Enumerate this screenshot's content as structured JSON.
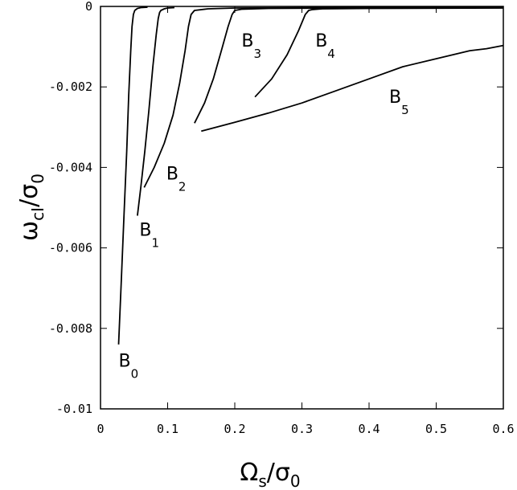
{
  "chart_data": {
    "type": "line",
    "xlabel": {
      "main": "Ω",
      "sub": "s",
      "slash": "/σ",
      "sub2": "0"
    },
    "ylabel": {
      "main": "ω",
      "sub": "cI",
      "slash": "/σ",
      "sub2": "0"
    },
    "xlim": [
      0,
      0.6
    ],
    "ylim": [
      -0.01,
      0
    ],
    "xticks": [
      0,
      0.1,
      0.2,
      0.3,
      0.4,
      0.5,
      0.6
    ],
    "xtick_labels": [
      "0",
      "0.1",
      "0.2",
      "0.3",
      "0.4",
      "0.5",
      "0.6"
    ],
    "yticks": [
      0,
      -0.002,
      -0.004,
      -0.006,
      -0.008,
      -0.01
    ],
    "ytick_labels": [
      "0",
      "-0.002",
      "-0.004",
      "-0.006",
      "-0.008",
      "-0.01"
    ],
    "grid": false,
    "series": [
      {
        "name": "B0",
        "label": "B",
        "sub": "0",
        "x": [
          0.027,
          0.031,
          0.035,
          0.039,
          0.042,
          0.045,
          0.047,
          0.049,
          0.051,
          0.055,
          0.06,
          0.07
        ],
        "y": [
          -0.0084,
          -0.0068,
          -0.0052,
          -0.0036,
          -0.0022,
          -0.0011,
          -0.0005,
          -0.0002,
          -0.0001,
          -5e-05,
          -3e-05,
          -2e-05
        ]
      },
      {
        "name": "B1",
        "label": "B",
        "sub": "1",
        "x": [
          0.055,
          0.06,
          0.066,
          0.072,
          0.078,
          0.083,
          0.086,
          0.088,
          0.09,
          0.095,
          0.1,
          0.11
        ],
        "y": [
          -0.0052,
          -0.0045,
          -0.0036,
          -0.0026,
          -0.0015,
          -0.0007,
          -0.0003,
          -0.00015,
          -0.0001,
          -6e-05,
          -4e-05,
          -3e-05
        ]
      },
      {
        "name": "B2",
        "label": "B",
        "sub": "2",
        "x": [
          0.065,
          0.08,
          0.095,
          0.108,
          0.118,
          0.126,
          0.131,
          0.135,
          0.14,
          0.16,
          0.2,
          0.3,
          0.6
        ],
        "y": [
          -0.0045,
          -0.004,
          -0.0034,
          -0.0027,
          -0.0019,
          -0.0011,
          -0.0005,
          -0.0002,
          -0.0001,
          -6e-05,
          -4e-05,
          -3e-05,
          -2e-05
        ]
      },
      {
        "name": "B3",
        "label": "B",
        "sub": "3",
        "x": [
          0.14,
          0.155,
          0.168,
          0.18,
          0.19,
          0.196,
          0.2,
          0.21,
          0.25,
          0.35,
          0.6
        ],
        "y": [
          -0.0029,
          -0.0024,
          -0.0018,
          -0.0011,
          -0.0005,
          -0.0002,
          -0.0001,
          -7e-05,
          -5e-05,
          -4e-05,
          -3e-05
        ]
      },
      {
        "name": "B4",
        "label": "B",
        "sub": "4",
        "x": [
          0.23,
          0.255,
          0.278,
          0.295,
          0.305,
          0.31,
          0.315,
          0.33,
          0.4,
          0.6
        ],
        "y": [
          -0.00225,
          -0.0018,
          -0.0012,
          -0.0006,
          -0.0002,
          -0.0001,
          -8e-05,
          -6e-05,
          -5e-05,
          -4e-05
        ]
      },
      {
        "name": "B5",
        "label": "B",
        "sub": "5",
        "x": [
          0.15,
          0.2,
          0.25,
          0.3,
          0.35,
          0.4,
          0.45,
          0.5,
          0.55,
          0.575,
          0.6
        ],
        "y": [
          -0.0031,
          -0.00288,
          -0.00265,
          -0.0024,
          -0.0021,
          -0.0018,
          -0.0015,
          -0.0013,
          -0.0011,
          -0.00105,
          -0.00097
        ]
      }
    ],
    "annotations": [
      {
        "series": "B0",
        "text": "B",
        "sub": "0",
        "x": 0.027,
        "y": -0.00895
      },
      {
        "series": "B1",
        "text": "B",
        "sub": "1",
        "x": 0.058,
        "y": -0.0057
      },
      {
        "series": "B2",
        "text": "B",
        "sub": "2",
        "x": 0.098,
        "y": -0.0043
      },
      {
        "series": "B3",
        "text": "B",
        "sub": "3",
        "x": 0.21,
        "y": -0.001
      },
      {
        "series": "B4",
        "text": "B",
        "sub": "4",
        "x": 0.32,
        "y": -0.001
      },
      {
        "series": "B5",
        "text": "B",
        "sub": "5",
        "x": 0.43,
        "y": -0.0024
      }
    ]
  }
}
